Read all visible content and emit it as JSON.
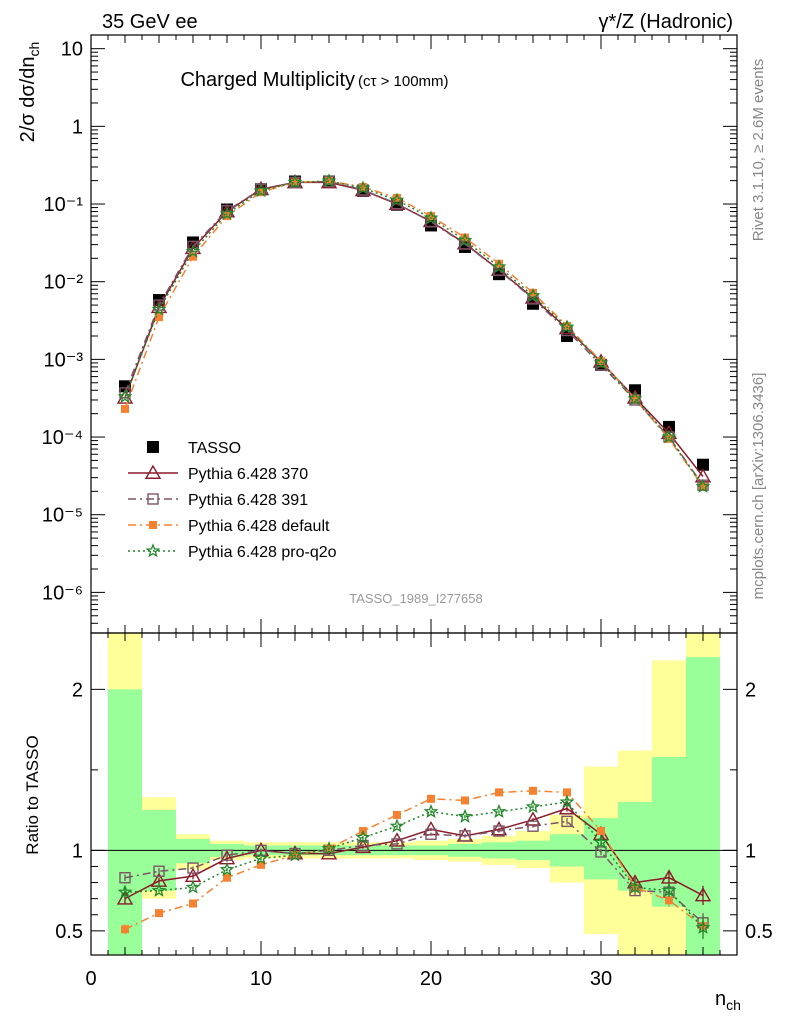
{
  "header": {
    "left": "35 GeV ee",
    "right": "γ*/Z (Hadronic)"
  },
  "side": {
    "top": "Rivet 3.1.10, ≥ 2.6M events",
    "bottom": "mcplots.cern.ch [arXiv:1306.3436]"
  },
  "chart_data": [
    {
      "type": "scatter",
      "panel": "main",
      "title": "Charged Multiplicity",
      "title_sub": "(cτ > 100mm)",
      "ylabel": "2/σ dσ/dn_ch",
      "xlabel": "n_ch",
      "watermark": "TASSO_1989_I277658",
      "yscale": "log",
      "xlim": [
        0,
        38
      ],
      "ylim": [
        3e-07,
        15
      ],
      "yticks": [
        {
          "value": 1e-06,
          "label": "10⁻⁶"
        },
        {
          "value": 1e-05,
          "label": "10⁻⁵"
        },
        {
          "value": 0.0001,
          "label": "10⁻⁴"
        },
        {
          "value": 0.001,
          "label": "10⁻³"
        },
        {
          "value": 0.01,
          "label": "10⁻²"
        },
        {
          "value": 0.1,
          "label": "10⁻¹"
        },
        {
          "value": 1,
          "label": "1"
        },
        {
          "value": 10,
          "label": "10"
        }
      ],
      "legend_position": "bottom-left",
      "series": [
        {
          "name": "TASSO",
          "color": "#000000",
          "marker": "square-filled",
          "x": [
            2,
            4,
            6,
            8,
            10,
            12,
            14,
            16,
            18,
            20,
            22,
            24,
            26,
            28,
            30,
            32,
            34,
            36
          ],
          "y": [
            0.00045,
            0.0058,
            0.032,
            0.085,
            0.155,
            0.195,
            0.195,
            0.148,
            0.098,
            0.053,
            0.028,
            0.0125,
            0.0052,
            0.002,
            0.00085,
            0.0004,
            0.000135,
            4.4e-05
          ]
        },
        {
          "name": "Pythia 6.428 370",
          "color": "#8b1a2a",
          "marker": "triangle-open",
          "line": "solid",
          "x": [
            2,
            4,
            6,
            8,
            10,
            12,
            14,
            16,
            18,
            20,
            22,
            24,
            26,
            28,
            30,
            32,
            34,
            36
          ],
          "y": [
            0.00032,
            0.0047,
            0.027,
            0.08,
            0.155,
            0.19,
            0.19,
            0.15,
            0.1,
            0.06,
            0.031,
            0.0142,
            0.0062,
            0.0025,
            0.00093,
            0.00032,
            0.000112,
            3.1e-05
          ]
        },
        {
          "name": "Pythia 6.428 391",
          "color": "#7a5568",
          "marker": "square-open",
          "line": "dashdot",
          "x": [
            2,
            4,
            6,
            8,
            10,
            12,
            14,
            16,
            18,
            20,
            22,
            24,
            26,
            28,
            30,
            32,
            34,
            36
          ],
          "y": [
            0.00037,
            0.005,
            0.0285,
            0.082,
            0.155,
            0.19,
            0.195,
            0.152,
            0.101,
            0.059,
            0.0305,
            0.014,
            0.006,
            0.00235,
            0.00085,
            0.0003,
            0.0001,
            2.4e-05
          ]
        },
        {
          "name": "Pythia 6.428 default",
          "color": "#f58231",
          "marker": "square-filled-small",
          "line": "dashdot",
          "x": [
            2,
            4,
            6,
            8,
            10,
            12,
            14,
            16,
            18,
            20,
            22,
            24,
            26,
            28,
            30,
            32,
            34,
            36
          ],
          "y": [
            0.00023,
            0.0035,
            0.021,
            0.07,
            0.142,
            0.19,
            0.198,
            0.166,
            0.12,
            0.07,
            0.037,
            0.017,
            0.0072,
            0.0027,
            0.00095,
            0.00031,
            9.5e-05,
            2.3e-05
          ]
        },
        {
          "name": "Pythia 6.428 pro-q2o",
          "color": "#22882a",
          "marker": "star-open",
          "line": "dotted",
          "x": [
            2,
            4,
            6,
            8,
            10,
            12,
            14,
            16,
            18,
            20,
            22,
            24,
            26,
            28,
            30,
            32,
            34,
            36
          ],
          "y": [
            0.00033,
            0.0044,
            0.0245,
            0.075,
            0.148,
            0.19,
            0.198,
            0.16,
            0.112,
            0.066,
            0.034,
            0.0155,
            0.0066,
            0.0026,
            0.0009,
            0.00031,
            0.0001,
            2.3e-05
          ]
        }
      ]
    },
    {
      "type": "scatter",
      "panel": "ratio",
      "ylabel": "Ratio to TASSO",
      "xlabel": "n_ch",
      "xlim": [
        0,
        38
      ],
      "ylim": [
        0.35,
        2.35
      ],
      "yticks": [
        {
          "value": 0.5,
          "label": "0.5"
        },
        {
          "value": 1,
          "label": "1"
        },
        {
          "value": 2,
          "label": "2"
        }
      ],
      "xticks": [
        {
          "value": 0,
          "label": "0"
        },
        {
          "value": 10,
          "label": "10"
        },
        {
          "value": 20,
          "label": "20"
        },
        {
          "value": 30,
          "label": "30"
        }
      ],
      "bands": [
        {
          "x0": 1,
          "x1": 3,
          "g_lo": 0.35,
          "g_hi": 2.0,
          "y_lo": 0.35,
          "y_hi": 2.35
        },
        {
          "x0": 3,
          "x1": 5,
          "g_lo": 0.75,
          "g_hi": 1.25,
          "y_lo": 0.7,
          "y_hi": 1.33
        },
        {
          "x0": 5,
          "x1": 7,
          "g_lo": 0.92,
          "g_hi": 1.07,
          "y_lo": 0.88,
          "y_hi": 1.1
        },
        {
          "x0": 7,
          "x1": 9,
          "g_lo": 0.96,
          "g_hi": 1.04,
          "y_lo": 0.94,
          "y_hi": 1.06
        },
        {
          "x0": 9,
          "x1": 11,
          "g_lo": 0.97,
          "g_hi": 1.03,
          "y_lo": 0.95,
          "y_hi": 1.05
        },
        {
          "x0": 11,
          "x1": 13,
          "g_lo": 0.97,
          "g_hi": 1.03,
          "y_lo": 0.95,
          "y_hi": 1.05
        },
        {
          "x0": 13,
          "x1": 15,
          "g_lo": 0.97,
          "g_hi": 1.03,
          "y_lo": 0.95,
          "y_hi": 1.05
        },
        {
          "x0": 15,
          "x1": 17,
          "g_lo": 0.97,
          "g_hi": 1.03,
          "y_lo": 0.95,
          "y_hi": 1.05
        },
        {
          "x0": 17,
          "x1": 19,
          "g_lo": 0.97,
          "g_hi": 1.03,
          "y_lo": 0.95,
          "y_hi": 1.05
        },
        {
          "x0": 19,
          "x1": 21,
          "g_lo": 0.97,
          "g_hi": 1.03,
          "y_lo": 0.94,
          "y_hi": 1.06
        },
        {
          "x0": 21,
          "x1": 23,
          "g_lo": 0.96,
          "g_hi": 1.04,
          "y_lo": 0.93,
          "y_hi": 1.07
        },
        {
          "x0": 23,
          "x1": 25,
          "g_lo": 0.95,
          "g_hi": 1.05,
          "y_lo": 0.91,
          "y_hi": 1.09
        },
        {
          "x0": 25,
          "x1": 27,
          "g_lo": 0.94,
          "g_hi": 1.06,
          "y_lo": 0.89,
          "y_hi": 1.12
        },
        {
          "x0": 27,
          "x1": 29,
          "g_lo": 0.9,
          "g_hi": 1.1,
          "y_lo": 0.8,
          "y_hi": 1.22
        },
        {
          "x0": 29,
          "x1": 31,
          "g_lo": 0.82,
          "g_hi": 1.2,
          "y_lo": 0.48,
          "y_hi": 1.52
        },
        {
          "x0": 31,
          "x1": 33,
          "g_lo": 0.75,
          "g_hi": 1.3,
          "y_lo": 0.35,
          "y_hi": 1.62
        },
        {
          "x0": 33,
          "x1": 35,
          "g_lo": 0.65,
          "g_hi": 1.58,
          "y_lo": 0.35,
          "y_hi": 2.18
        },
        {
          "x0": 35,
          "x1": 37,
          "g_lo": 0.35,
          "g_hi": 2.2,
          "y_lo": 0.35,
          "y_hi": 2.35
        }
      ],
      "series": [
        {
          "name": "Pythia 6.428 370",
          "color": "#8b1a2a",
          "marker": "triangle-open",
          "line": "solid",
          "x": [
            2,
            4,
            6,
            8,
            10,
            12,
            14,
            16,
            18,
            20,
            22,
            24,
            26,
            28,
            30,
            32,
            34,
            36
          ],
          "y": [
            0.7,
            0.81,
            0.84,
            0.95,
            1.0,
            0.98,
            0.98,
            1.02,
            1.06,
            1.13,
            1.09,
            1.13,
            1.19,
            1.26,
            1.1,
            0.8,
            0.83,
            0.72
          ],
          "err": [
            0.03,
            0.02,
            0.02,
            0.02,
            0.01,
            0.01,
            0.01,
            0.01,
            0.01,
            0.01,
            0.01,
            0.01,
            0.01,
            0.02,
            0.02,
            0.03,
            0.04,
            0.06
          ]
        },
        {
          "name": "Pythia 6.428 391",
          "color": "#7a5568",
          "marker": "square-open",
          "line": "dashdot",
          "x": [
            2,
            4,
            6,
            8,
            10,
            12,
            14,
            16,
            18,
            20,
            22,
            24,
            26,
            28,
            30,
            32,
            34,
            36
          ],
          "y": [
            0.83,
            0.87,
            0.89,
            0.97,
            1.0,
            0.98,
            1.0,
            1.03,
            1.04,
            1.1,
            1.09,
            1.12,
            1.15,
            1.18,
            0.99,
            0.75,
            0.74,
            0.55
          ],
          "err": [
            0.02,
            0.02,
            0.01,
            0.01,
            0.01,
            0.01,
            0.01,
            0.01,
            0.01,
            0.01,
            0.01,
            0.01,
            0.01,
            0.02,
            0.02,
            0.03,
            0.04,
            0.06
          ]
        },
        {
          "name": "Pythia 6.428 default",
          "color": "#f58231",
          "marker": "square-filled-small",
          "line": "dashdot",
          "x": [
            2,
            4,
            6,
            8,
            10,
            12,
            14,
            16,
            18,
            20,
            22,
            24,
            26,
            28,
            30,
            32,
            34,
            36
          ],
          "y": [
            0.51,
            0.61,
            0.67,
            0.83,
            0.91,
            0.97,
            1.01,
            1.12,
            1.22,
            1.32,
            1.31,
            1.36,
            1.37,
            1.36,
            1.12,
            0.77,
            0.69,
            0.53
          ],
          "err": [
            0.03,
            0.01,
            0.01,
            0.01,
            0.01,
            0.01,
            0.01,
            0.01,
            0.01,
            0.01,
            0.01,
            0.01,
            0.01,
            0.02,
            0.02,
            0.03,
            0.04,
            0.05
          ]
        },
        {
          "name": "Pythia 6.428 pro-q2o",
          "color": "#22882a",
          "marker": "star-open",
          "line": "dotted",
          "x": [
            2,
            4,
            6,
            8,
            10,
            12,
            14,
            16,
            18,
            20,
            22,
            24,
            26,
            28,
            30,
            32,
            34,
            36
          ],
          "y": [
            0.74,
            0.75,
            0.77,
            0.88,
            0.95,
            0.97,
            1.01,
            1.08,
            1.15,
            1.24,
            1.21,
            1.24,
            1.27,
            1.3,
            1.05,
            0.77,
            0.75,
            0.52
          ],
          "err": [
            0.03,
            0.01,
            0.01,
            0.01,
            0.01,
            0.01,
            0.01,
            0.01,
            0.01,
            0.01,
            0.01,
            0.01,
            0.01,
            0.02,
            0.02,
            0.03,
            0.04,
            0.07
          ]
        }
      ]
    }
  ]
}
